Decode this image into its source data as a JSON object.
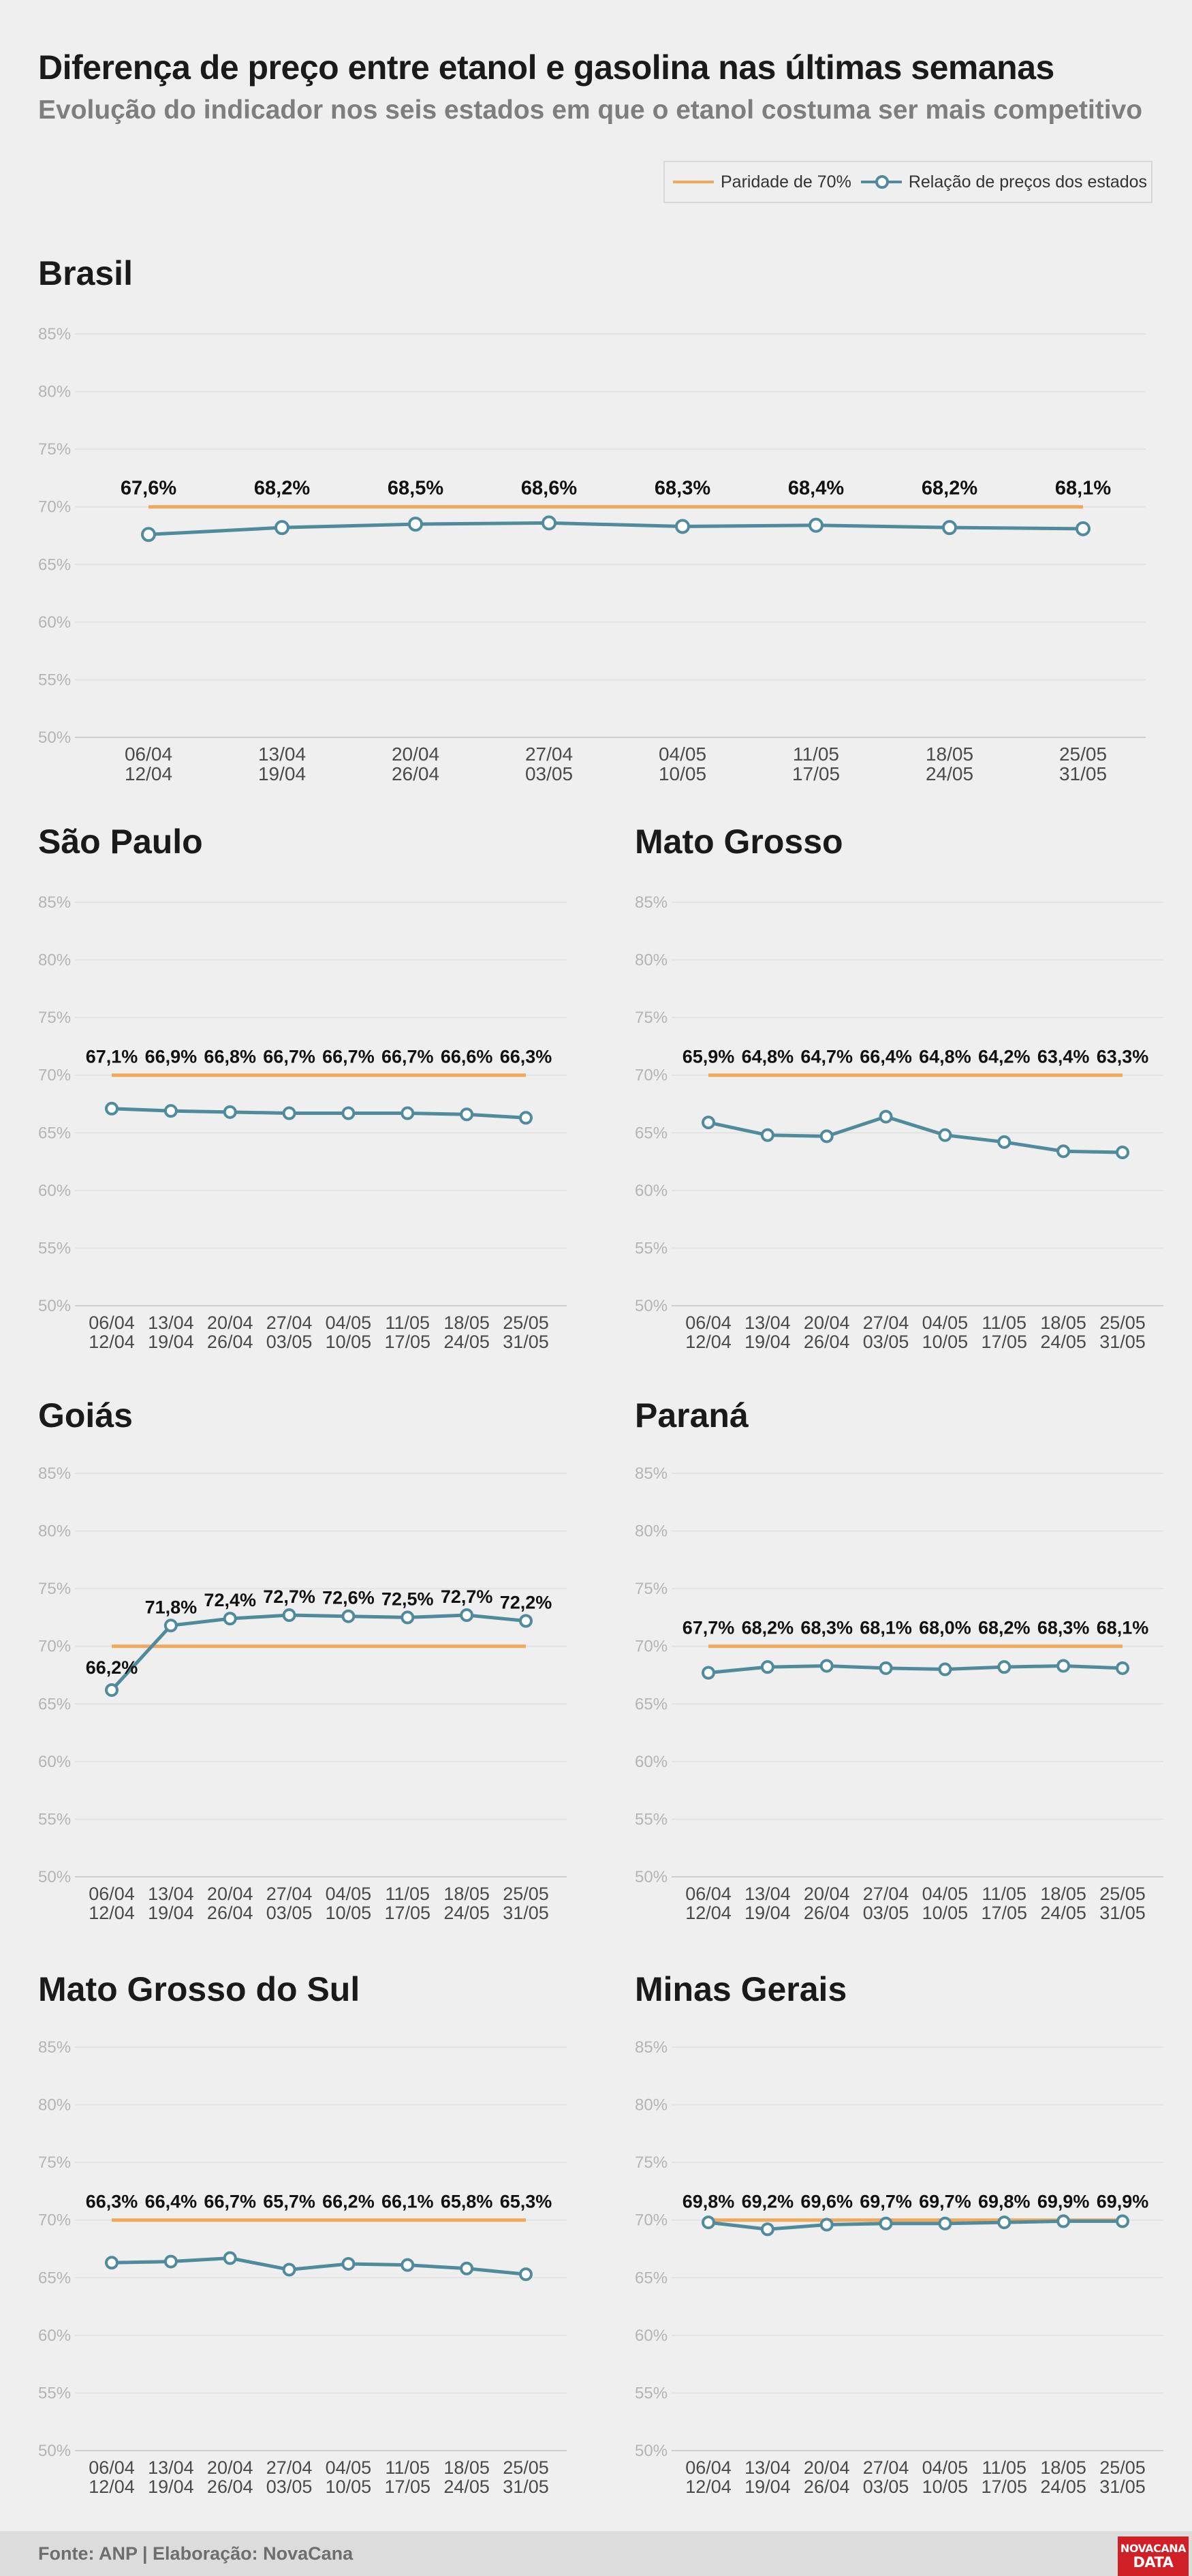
{
  "header": {
    "title": "Diferença de preço entre etanol e gasolina nas últimas semanas",
    "subtitle": "Evolução do indicador nos seis estados em que o etanol costuma ser mais competitivo"
  },
  "legend": {
    "parity": "Paridade de 70%",
    "series": "Relação de preços dos estados"
  },
  "colors": {
    "parity": "#f0a85a",
    "series": "#4f8b9c",
    "background": "#efefef"
  },
  "footer": {
    "source": "Fonte: ANP | Elaboração: NovaCana",
    "logo_line1": "NOVACANA",
    "logo_line2": "DATA"
  },
  "chart_data": [
    {
      "type": "line",
      "title": "Brasil",
      "x": [
        [
          "06/04",
          "12/04"
        ],
        [
          "13/04",
          "19/04"
        ],
        [
          "20/04",
          "26/04"
        ],
        [
          "27/04",
          "03/05"
        ],
        [
          "04/05",
          "10/05"
        ],
        [
          "11/05",
          "17/05"
        ],
        [
          "18/05",
          "24/05"
        ],
        [
          "25/05",
          "31/05"
        ]
      ],
      "series": [
        {
          "name": "Relação de preços dos estados",
          "values": [
            67.6,
            68.2,
            68.5,
            68.6,
            68.3,
            68.4,
            68.2,
            68.1
          ],
          "labels": [
            "67,6%",
            "68,2%",
            "68,5%",
            "68,6%",
            "68,3%",
            "68,4%",
            "68,2%",
            "68,1%"
          ]
        },
        {
          "name": "Paridade de 70%",
          "values": [
            70,
            70,
            70,
            70,
            70,
            70,
            70,
            70
          ]
        }
      ],
      "yticks": [
        "50%",
        "55%",
        "60%",
        "65%",
        "70%",
        "75%",
        "80%",
        "85%"
      ],
      "ylim": [
        50,
        85
      ],
      "grid": true
    },
    {
      "type": "line",
      "title": "São Paulo",
      "x": [
        [
          "06/04",
          "12/04"
        ],
        [
          "13/04",
          "19/04"
        ],
        [
          "20/04",
          "26/04"
        ],
        [
          "27/04",
          "03/05"
        ],
        [
          "04/05",
          "10/05"
        ],
        [
          "11/05",
          "17/05"
        ],
        [
          "18/05",
          "24/05"
        ],
        [
          "25/05",
          "31/05"
        ]
      ],
      "series": [
        {
          "name": "Relação de preços dos estados",
          "values": [
            67.1,
            66.9,
            66.8,
            66.7,
            66.7,
            66.7,
            66.6,
            66.3
          ],
          "labels": [
            "67,1%",
            "66,9%",
            "66,8%",
            "66,7%",
            "66,7%",
            "66,7%",
            "66,6%",
            "66,3%"
          ]
        },
        {
          "name": "Paridade de 70%",
          "values": [
            70,
            70,
            70,
            70,
            70,
            70,
            70,
            70
          ]
        }
      ],
      "yticks": [
        "50%",
        "55%",
        "60%",
        "65%",
        "70%",
        "75%",
        "80%",
        "85%"
      ],
      "ylim": [
        50,
        85
      ],
      "grid": true
    },
    {
      "type": "line",
      "title": "Mato Grosso",
      "x": [
        [
          "06/04",
          "12/04"
        ],
        [
          "13/04",
          "19/04"
        ],
        [
          "20/04",
          "26/04"
        ],
        [
          "27/04",
          "03/05"
        ],
        [
          "04/05",
          "10/05"
        ],
        [
          "11/05",
          "17/05"
        ],
        [
          "18/05",
          "24/05"
        ],
        [
          "25/05",
          "31/05"
        ]
      ],
      "series": [
        {
          "name": "Relação de preços dos estados",
          "values": [
            65.9,
            64.8,
            64.7,
            66.4,
            64.8,
            64.2,
            63.4,
            63.3
          ],
          "labels": [
            "65,9%",
            "64,8%",
            "64,7%",
            "66,4%",
            "64,8%",
            "64,2%",
            "63,4%",
            "63,3%"
          ]
        },
        {
          "name": "Paridade de 70%",
          "values": [
            70,
            70,
            70,
            70,
            70,
            70,
            70,
            70
          ]
        }
      ],
      "yticks": [
        "50%",
        "55%",
        "60%",
        "65%",
        "70%",
        "75%",
        "80%",
        "85%"
      ],
      "ylim": [
        50,
        85
      ],
      "grid": true
    },
    {
      "type": "line",
      "title": "Goiás",
      "x": [
        [
          "06/04",
          "12/04"
        ],
        [
          "13/04",
          "19/04"
        ],
        [
          "20/04",
          "26/04"
        ],
        [
          "27/04",
          "03/05"
        ],
        [
          "04/05",
          "10/05"
        ],
        [
          "11/05",
          "17/05"
        ],
        [
          "18/05",
          "24/05"
        ],
        [
          "25/05",
          "31/05"
        ]
      ],
      "series": [
        {
          "name": "Relação de preços dos estados",
          "values": [
            66.2,
            71.8,
            72.4,
            72.7,
            72.6,
            72.5,
            72.7,
            72.2
          ],
          "labels": [
            "66,2%",
            "71,8%",
            "72,4%",
            "72,7%",
            "72,6%",
            "72,5%",
            "72,7%",
            "72,2%"
          ]
        },
        {
          "name": "Paridade de 70%",
          "values": [
            70,
            70,
            70,
            70,
            70,
            70,
            70,
            70
          ]
        }
      ],
      "yticks": [
        "50%",
        "55%",
        "60%",
        "65%",
        "70%",
        "75%",
        "80%",
        "85%"
      ],
      "ylim": [
        50,
        85
      ],
      "grid": true
    },
    {
      "type": "line",
      "title": "Paraná",
      "x": [
        [
          "06/04",
          "12/04"
        ],
        [
          "13/04",
          "19/04"
        ],
        [
          "20/04",
          "26/04"
        ],
        [
          "27/04",
          "03/05"
        ],
        [
          "04/05",
          "10/05"
        ],
        [
          "11/05",
          "17/05"
        ],
        [
          "18/05",
          "24/05"
        ],
        [
          "25/05",
          "31/05"
        ]
      ],
      "series": [
        {
          "name": "Relação de preços dos estados",
          "values": [
            67.7,
            68.2,
            68.3,
            68.1,
            68.0,
            68.2,
            68.3,
            68.1
          ],
          "labels": [
            "67,7%",
            "68,2%",
            "68,3%",
            "68,1%",
            "68,0%",
            "68,2%",
            "68,3%",
            "68,1%"
          ]
        },
        {
          "name": "Paridade de 70%",
          "values": [
            70,
            70,
            70,
            70,
            70,
            70,
            70,
            70
          ]
        }
      ],
      "yticks": [
        "50%",
        "55%",
        "60%",
        "65%",
        "70%",
        "75%",
        "80%",
        "85%"
      ],
      "ylim": [
        50,
        85
      ],
      "grid": true
    },
    {
      "type": "line",
      "title": "Mato Grosso do Sul",
      "x": [
        [
          "06/04",
          "12/04"
        ],
        [
          "13/04",
          "19/04"
        ],
        [
          "20/04",
          "26/04"
        ],
        [
          "27/04",
          "03/05"
        ],
        [
          "04/05",
          "10/05"
        ],
        [
          "11/05",
          "17/05"
        ],
        [
          "18/05",
          "24/05"
        ],
        [
          "25/05",
          "31/05"
        ]
      ],
      "series": [
        {
          "name": "Relação de preços dos estados",
          "values": [
            66.3,
            66.4,
            66.7,
            65.7,
            66.2,
            66.1,
            65.8,
            65.3
          ],
          "labels": [
            "66,3%",
            "66,4%",
            "66,7%",
            "65,7%",
            "66,2%",
            "66,1%",
            "65,8%",
            "65,3%"
          ]
        },
        {
          "name": "Paridade de 70%",
          "values": [
            70,
            70,
            70,
            70,
            70,
            70,
            70,
            70
          ]
        }
      ],
      "yticks": [
        "50%",
        "55%",
        "60%",
        "65%",
        "70%",
        "75%",
        "80%",
        "85%"
      ],
      "ylim": [
        50,
        85
      ],
      "grid": true
    },
    {
      "type": "line",
      "title": "Minas Gerais",
      "x": [
        [
          "06/04",
          "12/04"
        ],
        [
          "13/04",
          "19/04"
        ],
        [
          "20/04",
          "26/04"
        ],
        [
          "27/04",
          "03/05"
        ],
        [
          "04/05",
          "10/05"
        ],
        [
          "11/05",
          "17/05"
        ],
        [
          "18/05",
          "24/05"
        ],
        [
          "25/05",
          "31/05"
        ]
      ],
      "series": [
        {
          "name": "Relação de preços dos estados",
          "values": [
            69.8,
            69.2,
            69.6,
            69.7,
            69.7,
            69.8,
            69.9,
            69.9
          ],
          "labels": [
            "69,8%",
            "69,2%",
            "69,6%",
            "69,7%",
            "69,7%",
            "69,8%",
            "69,9%",
            "69,9%"
          ]
        },
        {
          "name": "Paridade de 70%",
          "values": [
            70,
            70,
            70,
            70,
            70,
            70,
            70,
            70
          ]
        }
      ],
      "yticks": [
        "50%",
        "55%",
        "60%",
        "65%",
        "70%",
        "75%",
        "80%",
        "85%"
      ],
      "ylim": [
        50,
        85
      ],
      "grid": true
    }
  ]
}
